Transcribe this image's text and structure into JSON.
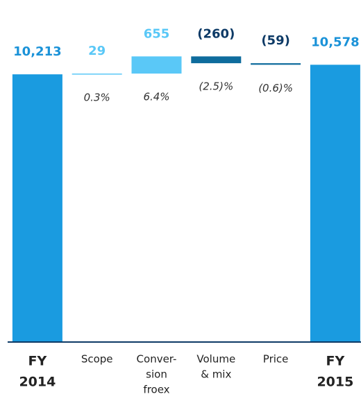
{
  "chart_data": {
    "type": "waterfall",
    "categories": [
      [
        "FY",
        "2014"
      ],
      [
        "Scope"
      ],
      [
        "Conver-",
        "sion",
        "froex"
      ],
      [
        "Volume",
        "& mix"
      ],
      [
        "Price"
      ],
      [
        "FY",
        "2015"
      ]
    ],
    "measure": [
      "total",
      "relative",
      "relative",
      "relative",
      "relative",
      "total"
    ],
    "values": [
      10213,
      29,
      655,
      -260,
      -59,
      10578
    ],
    "value_labels": [
      "10,213",
      "29",
      "655",
      "(260)",
      "(59)",
      "10,578"
    ],
    "annotations": [
      null,
      "0.3%",
      "6.4%",
      "(2.5)%",
      "(0.6)%",
      null
    ],
    "colors": {
      "total": "#1a9be0",
      "increase": "#5ac8f7",
      "decrease": "#0e6c9d"
    },
    "label_colors": {
      "total": "#1a92d8",
      "increase": "#5ac8f7",
      "decrease": "#0d3a66"
    },
    "ylim": [
      0,
      11000
    ]
  }
}
